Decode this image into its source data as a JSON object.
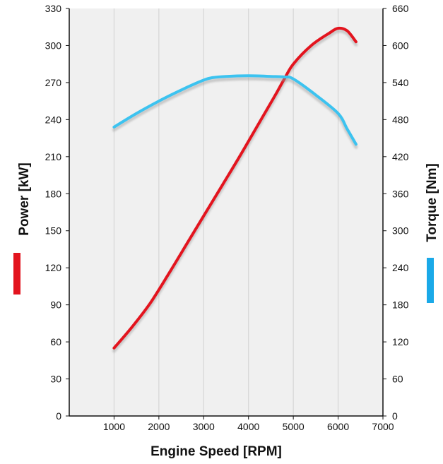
{
  "chart_data": {
    "type": "line",
    "title": "",
    "xlabel": "Engine Speed [RPM]",
    "ylabel_left": "Power [kW]",
    "ylabel_right": "Torque [Nm]",
    "xlim": [
      0,
      7000
    ],
    "x_ticks": [
      1000,
      2000,
      3000,
      4000,
      5000,
      6000,
      7000
    ],
    "ylim_left": [
      0,
      330
    ],
    "y_ticks_left": [
      0,
      30,
      60,
      90,
      120,
      150,
      180,
      210,
      240,
      270,
      300,
      330
    ],
    "ylim_right": [
      0,
      660
    ],
    "y_ticks_right": [
      0,
      60,
      120,
      180,
      240,
      300,
      360,
      420,
      480,
      540,
      600,
      660
    ],
    "grid": "vertical",
    "series": [
      {
        "name": "Power [kW]",
        "axis": "left",
        "color": "#e3141e",
        "x": [
          1000,
          1400,
          1800,
          2200,
          2600,
          3000,
          3400,
          3800,
          4200,
          4600,
          4800,
          5000,
          5400,
          5800,
          6000,
          6200,
          6400
        ],
        "y": [
          55,
          72,
          91,
          114,
          138,
          162,
          186,
          210,
          235,
          260,
          273,
          285,
          300,
          310,
          314,
          312,
          303
        ]
      },
      {
        "name": "Torque [Nm]",
        "axis": "right",
        "color": "#3cc3f0",
        "x": [
          1000,
          1500,
          2000,
          2500,
          3000,
          3200,
          3500,
          4000,
          4500,
          4800,
          5000,
          5500,
          6000,
          6200,
          6400
        ],
        "y": [
          468,
          490,
          510,
          528,
          544,
          548,
          550,
          551,
          550,
          549,
          546,
          520,
          490,
          465,
          440
        ]
      }
    ]
  }
}
